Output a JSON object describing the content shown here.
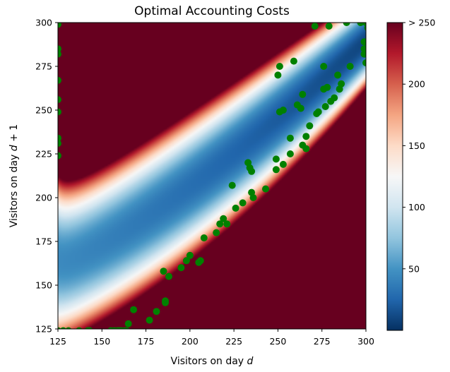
{
  "chart_data": {
    "type": "heatmap",
    "title": "Optimal Accounting Costs",
    "xlabel": "Visitors on day d",
    "ylabel": "Visitors on day d + 1",
    "xlim": [
      125,
      300
    ],
    "ylim": [
      125,
      300
    ],
    "x_ticks": [
      "125",
      "150",
      "175",
      "200",
      "225",
      "250",
      "275",
      "300"
    ],
    "y_ticks": [
      "125",
      "150",
      "175",
      "200",
      "225",
      "250",
      "275",
      "300"
    ],
    "colorbar": {
      "colormap": "RdBu_r",
      "range": [
        0,
        250
      ],
      "tick_labels": [
        "50",
        "100",
        "150",
        "200",
        "> 250"
      ],
      "tick_values": [
        50,
        100,
        150,
        200,
        250
      ]
    },
    "colors": {
      "scatter": "#008000",
      "high": "#67001f",
      "low": "#053061"
    },
    "grid": false,
    "legend": "none",
    "scatter": {
      "points": [
        [
          125,
          299
        ],
        [
          125,
          285
        ],
        [
          125,
          282
        ],
        [
          125,
          267
        ],
        [
          125,
          256
        ],
        [
          125,
          249
        ],
        [
          125,
          234
        ],
        [
          125,
          231
        ],
        [
          125,
          224
        ],
        [
          125,
          124
        ],
        [
          128,
          124
        ],
        [
          131,
          124
        ],
        [
          137,
          124
        ],
        [
          142,
          124
        ],
        [
          143,
          124
        ],
        [
          155,
          124
        ],
        [
          157,
          124
        ],
        [
          159,
          124
        ],
        [
          160,
          124
        ],
        [
          161,
          124
        ],
        [
          163,
          124
        ],
        [
          164,
          124
        ],
        [
          165,
          128
        ],
        [
          168,
          136
        ],
        [
          177,
          130
        ],
        [
          181,
          135
        ],
        [
          185,
          158
        ],
        [
          186,
          141
        ],
        [
          186,
          140
        ],
        [
          188,
          155
        ],
        [
          195,
          160
        ],
        [
          198,
          164
        ],
        [
          200,
          167
        ],
        [
          205,
          163
        ],
        [
          206,
          164
        ],
        [
          208,
          177
        ],
        [
          215,
          180
        ],
        [
          217,
          185
        ],
        [
          219,
          188
        ],
        [
          221,
          185
        ],
        [
          224,
          207
        ],
        [
          226,
          194
        ],
        [
          230,
          197
        ],
        [
          233,
          220
        ],
        [
          234,
          217
        ],
        [
          235,
          215
        ],
        [
          235,
          203
        ],
        [
          236,
          200
        ],
        [
          243,
          205
        ],
        [
          249,
          222
        ],
        [
          249,
          216
        ],
        [
          250,
          270
        ],
        [
          251,
          275
        ],
        [
          251,
          249
        ],
        [
          253,
          250
        ],
        [
          253,
          219
        ],
        [
          257,
          234
        ],
        [
          257,
          225
        ],
        [
          259,
          278
        ],
        [
          261,
          253
        ],
        [
          263,
          251
        ],
        [
          264,
          230
        ],
        [
          264,
          259
        ],
        [
          266,
          235
        ],
        [
          266,
          228
        ],
        [
          268,
          241
        ],
        [
          271,
          298
        ],
        [
          272,
          248
        ],
        [
          273,
          249
        ],
        [
          276,
          275
        ],
        [
          276,
          262
        ],
        [
          277,
          252
        ],
        [
          278,
          263
        ],
        [
          279,
          298
        ],
        [
          280,
          255
        ],
        [
          282,
          257
        ],
        [
          284,
          270
        ],
        [
          285,
          262
        ],
        [
          286,
          265
        ],
        [
          289,
          300
        ],
        [
          291,
          275
        ],
        [
          297,
          300
        ],
        [
          299,
          282
        ],
        [
          299,
          285
        ],
        [
          299,
          289
        ],
        [
          300,
          300
        ],
        [
          300,
          277
        ],
        [
          300,
          285
        ],
        [
          301,
          297
        ]
      ]
    }
  }
}
